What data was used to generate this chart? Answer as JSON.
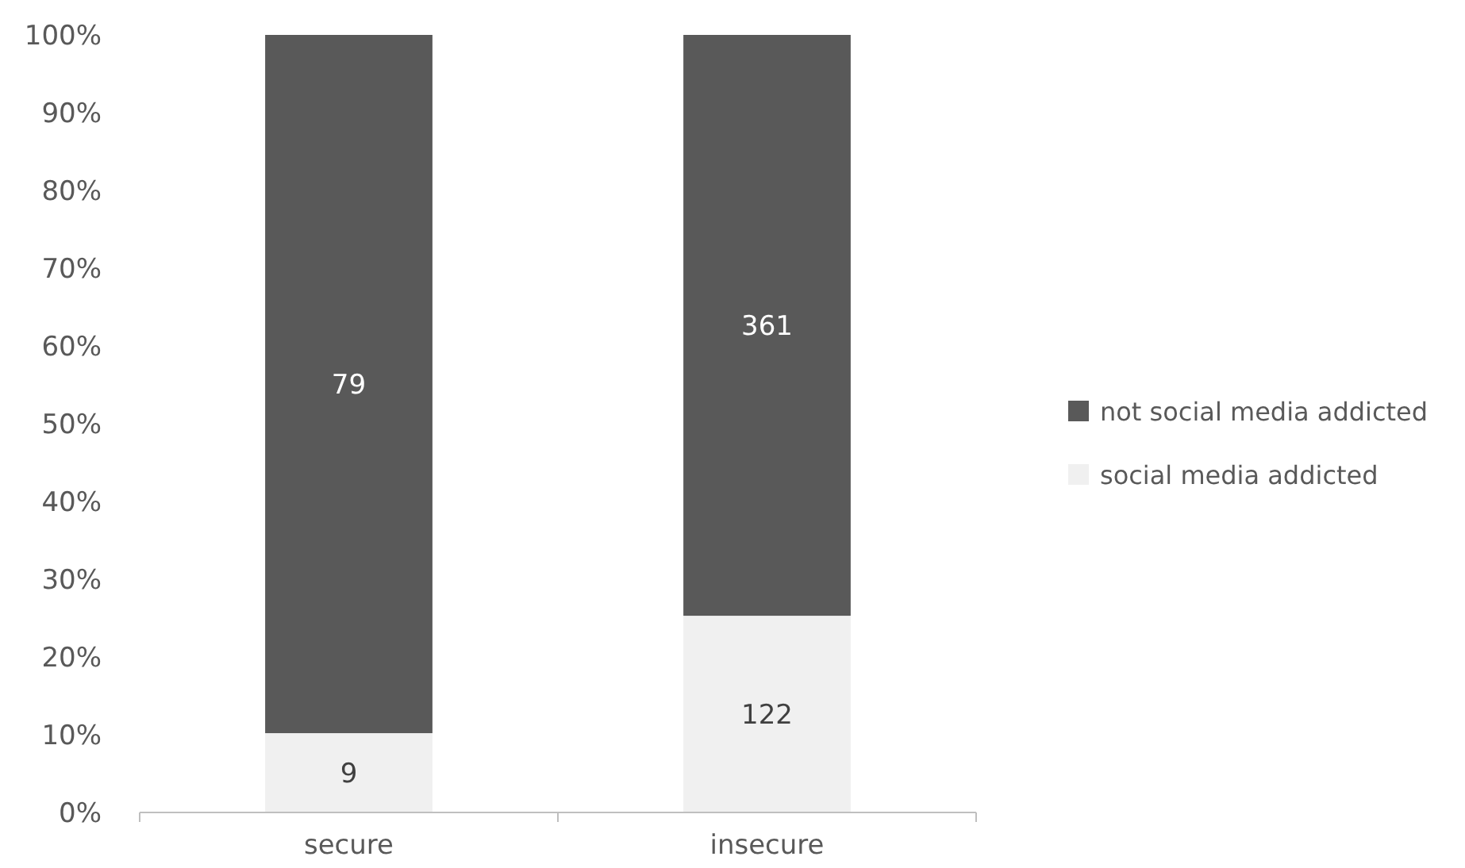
{
  "chart_data": {
    "type": "bar",
    "stacked": true,
    "categories": [
      "secure",
      "insecure"
    ],
    "series": [
      {
        "name": "social media addicted",
        "color": "#f0f0f0",
        "values": [
          10.2,
          25.3
        ]
      },
      {
        "name": "not social media addicted",
        "color": "#595959",
        "values": [
          89.8,
          74.7
        ]
      }
    ],
    "annotations": [
      "9",
      "79",
      "122",
      "361"
    ],
    "ylim": [
      0,
      100
    ],
    "yticks": [
      {
        "value": 0,
        "label": "0%"
      },
      {
        "value": 10,
        "label": "10%"
      },
      {
        "value": 20,
        "label": "20%"
      },
      {
        "value": 30,
        "label": "30%"
      },
      {
        "value": 40,
        "label": "40%"
      },
      {
        "value": 50,
        "label": "50%"
      },
      {
        "value": 60,
        "label": "60%"
      },
      {
        "value": 70,
        "label": "70%"
      },
      {
        "value": 80,
        "label": "80%"
      },
      {
        "value": 90,
        "label": "90%"
      },
      {
        "value": 100,
        "label": "100%"
      }
    ],
    "grid": false,
    "legend": "right"
  }
}
